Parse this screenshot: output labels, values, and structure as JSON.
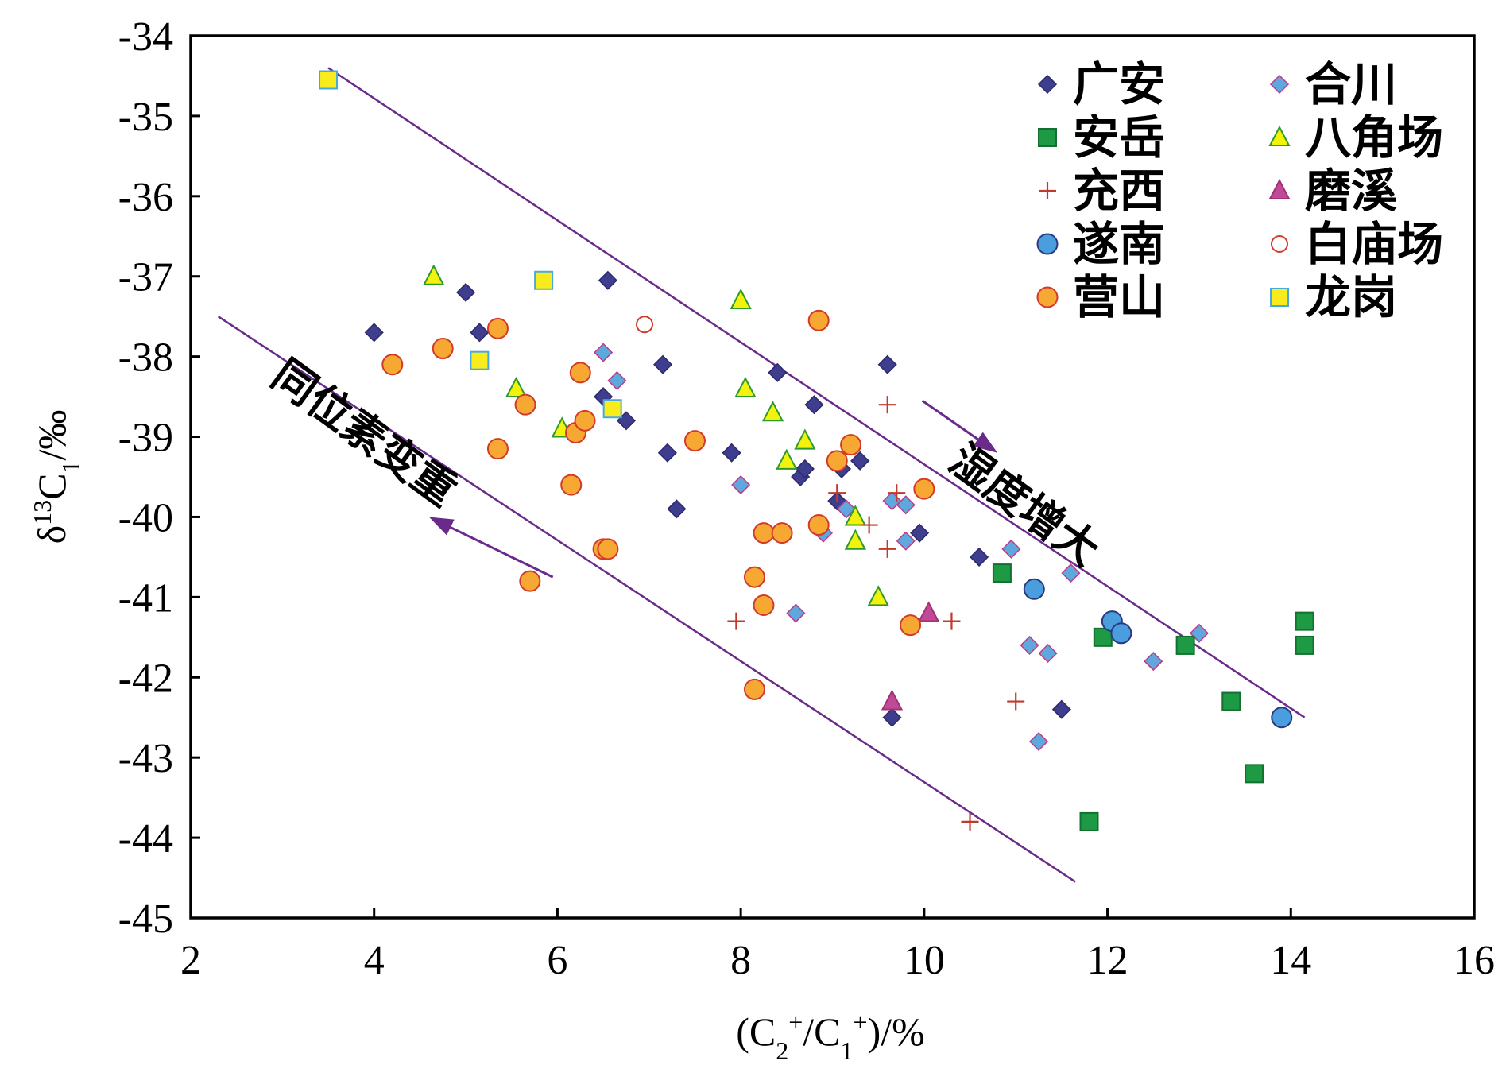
{
  "chart_data": {
    "type": "scatter",
    "xlabel_parts": [
      "(C",
      "2",
      "+",
      "/C",
      "1",
      "+",
      ")/%"
    ],
    "ylabel_parts": [
      "δ",
      "13",
      "C",
      "1",
      "/‰"
    ],
    "xlim": [
      2,
      16
    ],
    "ylim": [
      -45,
      -34
    ],
    "xticks": [
      "2",
      "4",
      "6",
      "8",
      "10",
      "12",
      "14",
      "16"
    ],
    "yticks": [
      "-34",
      "-35",
      "-36",
      "-37",
      "-38",
      "-39",
      "-40",
      "-41",
      "-42",
      "-43",
      "-44",
      "-45"
    ],
    "grid": false,
    "legend_position": "top-right",
    "series": [
      {
        "name": "广安",
        "marker": "diamond",
        "color": "#3f3d8e",
        "stroke": "#2b2a6a",
        "points": [
          [
            4.0,
            -37.7
          ],
          [
            5.0,
            -37.2
          ],
          [
            5.15,
            -37.7
          ],
          [
            6.5,
            -38.5
          ],
          [
            6.55,
            -37.05
          ],
          [
            6.75,
            -38.8
          ],
          [
            7.15,
            -38.1
          ],
          [
            7.2,
            -39.2
          ],
          [
            7.3,
            -39.9
          ],
          [
            7.9,
            -39.2
          ],
          [
            8.4,
            -38.2
          ],
          [
            8.65,
            -39.5
          ],
          [
            8.7,
            -39.4
          ],
          [
            8.8,
            -38.6
          ],
          [
            9.05,
            -39.8
          ],
          [
            9.1,
            -39.4
          ],
          [
            9.3,
            -39.3
          ],
          [
            9.6,
            -38.1
          ],
          [
            9.65,
            -42.5
          ],
          [
            9.95,
            -40.2
          ],
          [
            10.6,
            -40.5
          ],
          [
            11.5,
            -42.4
          ]
        ]
      },
      {
        "name": "合川",
        "marker": "diamond",
        "color": "#5ea8de",
        "stroke": "#c03a8a",
        "points": [
          [
            6.5,
            -37.95
          ],
          [
            6.65,
            -38.3
          ],
          [
            8.0,
            -39.6
          ],
          [
            8.6,
            -41.2
          ],
          [
            8.9,
            -40.2
          ],
          [
            9.15,
            -39.9
          ],
          [
            9.65,
            -39.8
          ],
          [
            9.8,
            -39.85
          ],
          [
            9.8,
            -40.3
          ],
          [
            10.95,
            -40.4
          ],
          [
            11.15,
            -41.6
          ],
          [
            11.25,
            -42.8
          ],
          [
            11.35,
            -41.7
          ],
          [
            11.6,
            -40.7
          ],
          [
            12.5,
            -41.8
          ],
          [
            13.0,
            -41.45
          ]
        ]
      },
      {
        "name": "安岳",
        "marker": "square",
        "color": "#1e9a44",
        "stroke": "#137030",
        "points": [
          [
            10.85,
            -40.7
          ],
          [
            11.8,
            -43.8
          ],
          [
            11.95,
            -41.5
          ],
          [
            12.85,
            -41.6
          ],
          [
            13.35,
            -42.3
          ],
          [
            13.6,
            -43.2
          ],
          [
            14.15,
            -41.3
          ],
          [
            14.15,
            -41.6
          ]
        ]
      },
      {
        "name": "八角场",
        "marker": "triangle",
        "color": "#f2f20c",
        "stroke": "#2e9a2e",
        "points": [
          [
            4.65,
            -37.0
          ],
          [
            5.55,
            -38.4
          ],
          [
            6.05,
            -38.9
          ],
          [
            8.0,
            -37.3
          ],
          [
            8.05,
            -38.4
          ],
          [
            8.35,
            -38.7
          ],
          [
            8.5,
            -39.3
          ],
          [
            8.7,
            -39.05
          ],
          [
            9.25,
            -40.0
          ],
          [
            9.25,
            -40.3
          ],
          [
            9.5,
            -41.0
          ]
        ]
      },
      {
        "name": "充西",
        "marker": "plus",
        "color": "#c0392b",
        "stroke": "#c0392b",
        "points": [
          [
            7.95,
            -41.3
          ],
          [
            9.05,
            -39.7
          ],
          [
            9.4,
            -40.1
          ],
          [
            9.6,
            -38.6
          ],
          [
            9.6,
            -40.4
          ],
          [
            9.7,
            -39.7
          ],
          [
            10.3,
            -41.3
          ],
          [
            11.0,
            -42.3
          ],
          [
            10.5,
            -43.8
          ]
        ]
      },
      {
        "name": "磨溪",
        "marker": "triangle",
        "color": "#c04a95",
        "stroke": "#a03377",
        "points": [
          [
            9.65,
            -42.3
          ],
          [
            10.05,
            -41.2
          ]
        ]
      },
      {
        "name": "遂南",
        "marker": "circle",
        "color": "#4a9ede",
        "stroke": "#2a3a80",
        "points": [
          [
            11.2,
            -40.9
          ],
          [
            12.05,
            -41.3
          ],
          [
            12.15,
            -41.45
          ],
          [
            13.9,
            -42.5
          ]
        ]
      },
      {
        "name": "白庙场",
        "marker": "circle-open",
        "color": "#ffffff",
        "stroke": "#d23a2a",
        "points": [
          [
            6.95,
            -37.6
          ]
        ]
      },
      {
        "name": "营山",
        "marker": "circle",
        "color": "#f7a833",
        "stroke": "#d23a2a",
        "points": [
          [
            4.2,
            -38.1
          ],
          [
            4.75,
            -37.9
          ],
          [
            5.35,
            -37.65
          ],
          [
            5.35,
            -39.15
          ],
          [
            5.65,
            -38.6
          ],
          [
            5.7,
            -40.8
          ],
          [
            6.15,
            -39.6
          ],
          [
            6.2,
            -38.95
          ],
          [
            6.25,
            -38.2
          ],
          [
            6.3,
            -38.8
          ],
          [
            6.5,
            -40.4
          ],
          [
            6.55,
            -40.4
          ],
          [
            7.5,
            -39.05
          ],
          [
            8.15,
            -40.75
          ],
          [
            8.15,
            -42.15
          ],
          [
            8.25,
            -40.2
          ],
          [
            8.25,
            -41.1
          ],
          [
            8.45,
            -40.2
          ],
          [
            8.85,
            -37.55
          ],
          [
            8.85,
            -40.1
          ],
          [
            9.05,
            -39.3
          ],
          [
            9.2,
            -39.1
          ],
          [
            9.85,
            -41.35
          ],
          [
            10.0,
            -39.65
          ]
        ]
      },
      {
        "name": "龙岗",
        "marker": "square",
        "color": "#f8ec1c",
        "stroke": "#4aa8de",
        "points": [
          [
            3.5,
            -34.55
          ],
          [
            5.15,
            -38.05
          ],
          [
            5.85,
            -37.05
          ],
          [
            6.6,
            -38.65
          ]
        ]
      }
    ],
    "lines": [
      {
        "x": [
          3.5,
          14.15
        ],
        "y": [
          -34.4,
          -42.5
        ],
        "color": "#6a2a8a"
      },
      {
        "x": [
          2.3,
          11.65
        ],
        "y": [
          -37.5,
          -44.55
        ],
        "color": "#6a2a8a"
      }
    ],
    "arrows": [
      {
        "x": [
          9.98,
          10.8
        ],
        "y": [
          -38.55,
          -39.2
        ],
        "color": "#6a2a8a"
      },
      {
        "x": [
          5.95,
          4.6
        ],
        "y": [
          -40.75,
          -40.0
        ],
        "color": "#6a2a8a"
      }
    ],
    "annotations": [
      {
        "text": "湿度增大",
        "x": 11.0,
        "y": -40.0,
        "rotate": 36
      },
      {
        "text": "同位素变重",
        "x": 3.8,
        "y": -39.1,
        "rotate": 36
      }
    ]
  }
}
